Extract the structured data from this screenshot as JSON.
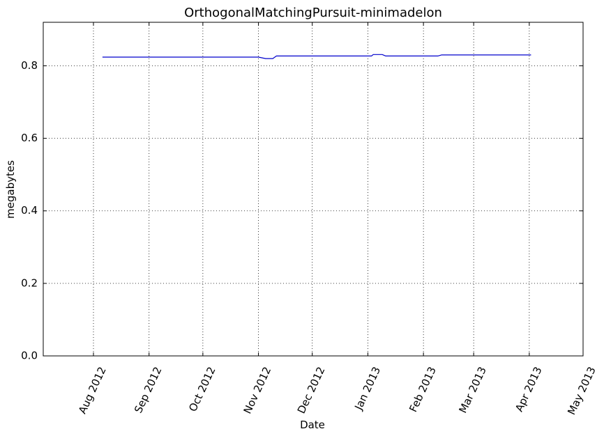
{
  "chart_data": {
    "type": "line",
    "title": "OrthogonalMatchingPursuit-minimadelon",
    "xlabel": "Date",
    "ylabel": "megabytes",
    "x_axis_type": "date",
    "xlim": [
      "2012-07-04",
      "2013-05-01"
    ],
    "ylim": [
      0,
      0.92
    ],
    "grid": true,
    "legend": "none",
    "x_ticks": [
      {
        "date": "2012-08-01",
        "label": "Aug 2012"
      },
      {
        "date": "2012-09-01",
        "label": "Sep 2012"
      },
      {
        "date": "2012-10-01",
        "label": "Oct 2012"
      },
      {
        "date": "2012-11-01",
        "label": "Nov 2012"
      },
      {
        "date": "2012-12-01",
        "label": "Dec 2012"
      },
      {
        "date": "2013-01-01",
        "label": "Jan 2013"
      },
      {
        "date": "2013-02-01",
        "label": "Feb 2013"
      },
      {
        "date": "2013-03-01",
        "label": "Mar 2013"
      },
      {
        "date": "2013-04-01",
        "label": "Apr 2013"
      },
      {
        "date": "2013-05-01",
        "label": "May 2013"
      }
    ],
    "y_ticks": [
      {
        "value": 0.0,
        "label": "0.0"
      },
      {
        "value": 0.2,
        "label": "0.2"
      },
      {
        "value": 0.4,
        "label": "0.4"
      },
      {
        "value": 0.6,
        "label": "0.6"
      },
      {
        "value": 0.8,
        "label": "0.8"
      }
    ],
    "series": [
      {
        "color": "#0000cc",
        "points": [
          {
            "x": "2012-08-06",
            "y": 0.824
          },
          {
            "x": "2012-11-01",
            "y": 0.824
          },
          {
            "x": "2012-11-05",
            "y": 0.82
          },
          {
            "x": "2012-11-09",
            "y": 0.82
          },
          {
            "x": "2012-11-11",
            "y": 0.827
          },
          {
            "x": "2013-01-03",
            "y": 0.827
          },
          {
            "x": "2013-01-04",
            "y": 0.831
          },
          {
            "x": "2013-01-09",
            "y": 0.831
          },
          {
            "x": "2013-01-11",
            "y": 0.827
          },
          {
            "x": "2013-02-09",
            "y": 0.827
          },
          {
            "x": "2013-02-11",
            "y": 0.83
          },
          {
            "x": "2013-04-02",
            "y": 0.83
          }
        ]
      }
    ]
  }
}
